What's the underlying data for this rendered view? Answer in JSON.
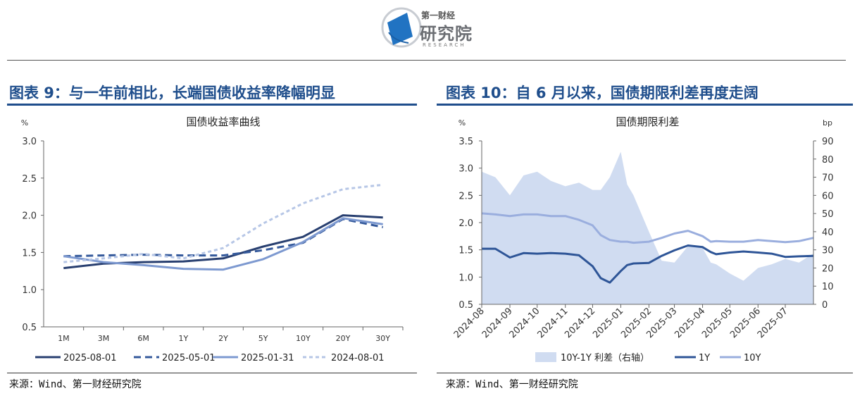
{
  "header": {
    "logo_top": "第一财经",
    "logo_main": "研究院",
    "logo_sub": "RESEARCH"
  },
  "left_panel": {
    "figure_title": "图表 9：与一年前相比，长端国债收益率降幅明显",
    "source": "来源：Wind、第一财经研究院"
  },
  "right_panel": {
    "figure_title": "图表 10：自 6 月以来，国债期限利差再度走阔",
    "source": "来源：Wind、第一财经研究院"
  },
  "chart_data": [
    {
      "type": "line",
      "title": "国债收益率曲线",
      "ylabel": "%",
      "ylim": [
        0.5,
        3.0
      ],
      "yticks": [
        "0.5",
        "1.0",
        "1.5",
        "2.0",
        "2.5",
        "3.0"
      ],
      "categories": [
        "1M",
        "3M",
        "6M",
        "1Y",
        "2Y",
        "5Y",
        "10Y",
        "20Y",
        "30Y"
      ],
      "legend_position": "bottom",
      "series": [
        {
          "name": "2025-08-01",
          "color": "#283f70",
          "style": "solid",
          "values": [
            1.29,
            1.35,
            1.37,
            1.38,
            1.42,
            1.58,
            1.71,
            2.0,
            1.97
          ]
        },
        {
          "name": "2025-05-01",
          "color": "#34599b",
          "style": "dashed",
          "values": [
            1.45,
            1.46,
            1.47,
            1.46,
            1.46,
            1.53,
            1.63,
            1.95,
            1.84
          ]
        },
        {
          "name": "2025-01-31",
          "color": "#7d99d0",
          "style": "solid",
          "values": [
            1.45,
            1.37,
            1.33,
            1.28,
            1.27,
            1.41,
            1.64,
            1.96,
            1.88
          ]
        },
        {
          "name": "2024-08-01",
          "color": "#b6c6e6",
          "style": "dotted",
          "values": [
            1.37,
            1.42,
            1.48,
            1.42,
            1.56,
            1.89,
            2.16,
            2.35,
            2.41
          ]
        }
      ]
    },
    {
      "type": "area",
      "title": "国债期限利差",
      "ylabel": "%",
      "ylabel_right": "bp",
      "ylim": [
        0.5,
        3.5
      ],
      "ylim_right": [
        0,
        90
      ],
      "yticks": [
        "0.5",
        "1.0",
        "1.5",
        "2.0",
        "2.5",
        "3.0",
        "3.5"
      ],
      "yticks_right": [
        "0",
        "10",
        "20",
        "30",
        "40",
        "50",
        "60",
        "70",
        "80",
        "90"
      ],
      "x_ticks": [
        "2024-08",
        "2024-09",
        "2024-10",
        "2024-11",
        "2024-12",
        "2025-01",
        "2025-02",
        "2025-03",
        "2025-04",
        "2025-05",
        "2025-06",
        "2025-07"
      ],
      "legend_position": "bottom",
      "series": [
        {
          "name": "10Y-1Y 利差（右轴）",
          "color": "#d0dcf1",
          "axis": "right",
          "type": "area",
          "x": [
            "2024-08-01",
            "2024-08-16",
            "2024-09-01",
            "2024-09-16",
            "2024-10-01",
            "2024-10-16",
            "2024-11-01",
            "2024-11-16",
            "2024-12-01",
            "2024-12-10",
            "2024-12-20",
            "2025-01-01",
            "2025-01-08",
            "2025-01-15",
            "2025-02-01",
            "2025-02-15",
            "2025-03-01",
            "2025-03-16",
            "2025-04-01",
            "2025-04-10",
            "2025-04-16",
            "2025-05-01",
            "2025-05-16",
            "2025-06-01",
            "2025-06-16",
            "2025-07-01",
            "2025-07-16",
            "2025-08-01"
          ],
          "values": [
            73,
            70,
            60,
            71,
            73,
            68,
            65,
            67,
            63,
            63,
            70,
            84,
            66,
            60,
            40,
            24,
            23,
            32,
            31,
            23,
            22,
            17,
            13,
            20,
            22,
            25,
            23,
            28
          ]
        },
        {
          "name": "1Y",
          "color": "#2e5597",
          "axis": "left",
          "type": "line",
          "x": [
            "2024-08-01",
            "2024-08-16",
            "2024-09-01",
            "2024-09-16",
            "2024-10-01",
            "2024-10-16",
            "2024-11-01",
            "2024-11-16",
            "2024-12-01",
            "2024-12-10",
            "2024-12-20",
            "2025-01-01",
            "2025-01-08",
            "2025-01-15",
            "2025-02-01",
            "2025-02-15",
            "2025-03-01",
            "2025-03-16",
            "2025-04-01",
            "2025-04-10",
            "2025-04-16",
            "2025-05-01",
            "2025-05-16",
            "2025-06-01",
            "2025-06-16",
            "2025-07-01",
            "2025-07-16",
            "2025-08-01"
          ],
          "values": [
            1.52,
            1.52,
            1.36,
            1.44,
            1.43,
            1.44,
            1.43,
            1.4,
            1.2,
            0.98,
            0.9,
            1.11,
            1.22,
            1.25,
            1.26,
            1.39,
            1.49,
            1.58,
            1.55,
            1.46,
            1.42,
            1.45,
            1.47,
            1.45,
            1.43,
            1.37,
            1.38,
            1.39
          ]
        },
        {
          "name": "10Y",
          "color": "#9aaede",
          "axis": "left",
          "type": "line",
          "x": [
            "2024-08-01",
            "2024-08-16",
            "2024-09-01",
            "2024-09-16",
            "2024-10-01",
            "2024-10-16",
            "2024-11-01",
            "2024-11-16",
            "2024-12-01",
            "2024-12-10",
            "2024-12-20",
            "2025-01-01",
            "2025-01-08",
            "2025-01-15",
            "2025-02-01",
            "2025-02-15",
            "2025-03-01",
            "2025-03-16",
            "2025-04-01",
            "2025-04-10",
            "2025-04-16",
            "2025-05-01",
            "2025-05-16",
            "2025-06-01",
            "2025-06-16",
            "2025-07-01",
            "2025-07-16",
            "2025-08-01"
          ],
          "values": [
            2.17,
            2.15,
            2.12,
            2.15,
            2.15,
            2.12,
            2.12,
            2.05,
            1.95,
            1.77,
            1.68,
            1.65,
            1.65,
            1.63,
            1.65,
            1.72,
            1.8,
            1.85,
            1.75,
            1.65,
            1.66,
            1.65,
            1.65,
            1.68,
            1.66,
            1.64,
            1.66,
            1.72
          ]
        }
      ]
    }
  ],
  "colors": {
    "title_blue": "#1f4e8c",
    "logo_blue": "#2173c2"
  }
}
